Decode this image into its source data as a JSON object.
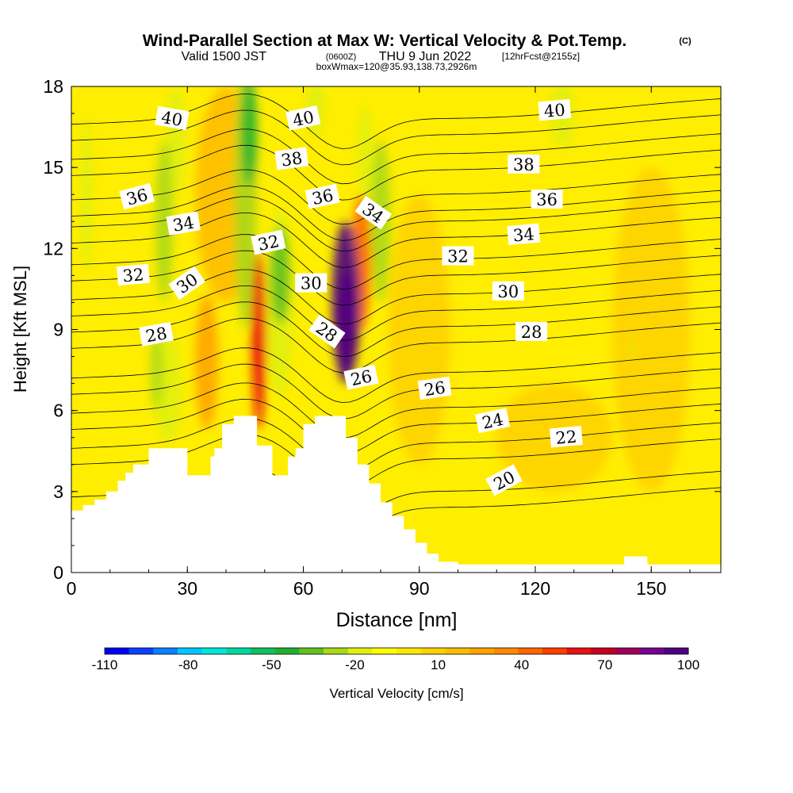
{
  "chart_data": {
    "type": "heatmap",
    "title": {
      "main": "Wind-Parallel Section at Max W: Vertical Velocity & Pot.Temp.",
      "copyright": "(C)",
      "valid_prefix": "Valid 1500 JST",
      "valid_utc": "(0600Z)",
      "valid_date": "THU 9 Jun 2022",
      "forecast": "[12hrFcst@2155z]",
      "box_info": "boxWmax=120@35.93,138.73,2926m"
    },
    "xlabel": "Distance [nm]",
    "ylabel": "Height [Kft MSL]",
    "xlim": [
      0,
      168
    ],
    "ylim": [
      0,
      18
    ],
    "xticks": [
      0,
      30,
      60,
      90,
      120,
      150
    ],
    "yticks": [
      0,
      3,
      6,
      9,
      12,
      15,
      18
    ],
    "colorbar": {
      "label": "Vertical Velocity [cm/s]",
      "tick_labels": [
        "-110",
        "-80",
        "-50",
        "-20",
        "10",
        "40",
        "70",
        "100"
      ],
      "colors": [
        "#0000ff",
        "#0a40ff",
        "#0a80ff",
        "#00c8ff",
        "#00e8d8",
        "#00d8a0",
        "#10c060",
        "#20b030",
        "#60c020",
        "#a8d818",
        "#e0ef10",
        "#ffff00",
        "#ffe800",
        "#ffd200",
        "#ffbc00",
        "#ffa400",
        "#ff8800",
        "#ff6600",
        "#ff3d00",
        "#e81010",
        "#c8001e",
        "#a0005a",
        "#780090",
        "#4b0082"
      ]
    },
    "terrain_kft": [
      [
        0,
        2.3
      ],
      [
        3,
        2.3
      ],
      [
        3,
        2.5
      ],
      [
        6,
        2.5
      ],
      [
        6,
        2.7
      ],
      [
        9,
        2.7
      ],
      [
        9,
        3.0
      ],
      [
        12,
        3.0
      ],
      [
        12,
        3.4
      ],
      [
        14,
        3.4
      ],
      [
        14,
        3.7
      ],
      [
        16,
        3.7
      ],
      [
        16,
        4.0
      ],
      [
        20,
        4.0
      ],
      [
        20,
        4.6
      ],
      [
        30,
        4.6
      ],
      [
        30,
        3.6
      ],
      [
        36,
        3.6
      ],
      [
        36,
        4.3
      ],
      [
        37,
        4.3
      ],
      [
        37,
        4.6
      ],
      [
        39,
        4.6
      ],
      [
        39,
        5.5
      ],
      [
        42,
        5.5
      ],
      [
        42,
        5.8
      ],
      [
        48,
        5.8
      ],
      [
        48,
        4.7
      ],
      [
        52,
        4.7
      ],
      [
        52,
        3.6
      ],
      [
        56,
        3.6
      ],
      [
        56,
        4.3
      ],
      [
        58,
        4.3
      ],
      [
        58,
        4.6
      ],
      [
        60,
        4.6
      ],
      [
        60,
        5.5
      ],
      [
        63,
        5.5
      ],
      [
        63,
        5.8
      ],
      [
        67,
        5.8
      ],
      [
        67,
        5.8
      ],
      [
        71,
        5.8
      ],
      [
        71,
        5.0
      ],
      [
        74,
        5.0
      ],
      [
        74,
        4.0
      ],
      [
        77,
        4.0
      ],
      [
        77,
        3.3
      ],
      [
        80,
        3.3
      ],
      [
        80,
        2.6
      ],
      [
        83,
        2.6
      ],
      [
        83,
        2.1
      ],
      [
        86,
        2.1
      ],
      [
        86,
        1.6
      ],
      [
        89,
        1.6
      ],
      [
        89,
        1.1
      ],
      [
        92,
        1.1
      ],
      [
        92,
        0.7
      ],
      [
        95,
        0.7
      ],
      [
        95,
        0.4
      ],
      [
        100,
        0.4
      ],
      [
        100,
        0.3
      ],
      [
        143,
        0.3
      ],
      [
        143,
        0.6
      ],
      [
        149,
        0.6
      ],
      [
        149,
        0.3
      ],
      [
        168,
        0.3
      ]
    ],
    "theta_levels": [
      {
        "value": 20,
        "y_at_x0": 2.2,
        "label": "20",
        "label_x": 112,
        "label_y": 3.4,
        "label_angle": -28
      },
      {
        "value": 22,
        "y_at_x0": 4.0,
        "label": "22",
        "label_x": 128,
        "label_y": 5.0,
        "label_angle": -5
      },
      {
        "value": 24,
        "y_at_x0": 5.3,
        "label": "24",
        "label_x": 109,
        "label_y": 5.6,
        "label_angle": -12
      },
      {
        "value": 26,
        "y_at_x0": 6.6,
        "label": "26",
        "label_x": 94,
        "label_y": 6.8,
        "label_angle": -8
      },
      {
        "value": 28,
        "y_at_x0": 8.3,
        "label": "28",
        "label_x": 22,
        "label_y": 8.8,
        "label_angle": -10
      },
      {
        "value": 30,
        "y_at_x0": 9.5,
        "label": "30",
        "label_x": 30,
        "label_y": 10.7,
        "label_angle": -35
      },
      {
        "value": 32,
        "y_at_x0": 10.8,
        "label": "32",
        "label_x": 16,
        "label_y": 11.0,
        "label_angle": -5
      },
      {
        "value": 34,
        "y_at_x0": 12.2,
        "label": "34",
        "label_x": 29,
        "label_y": 12.9,
        "label_angle": -10
      },
      {
        "value": 36,
        "y_at_x0": 13.2,
        "label": "36",
        "label_x": 17,
        "label_y": 13.9,
        "label_angle": -15
      },
      {
        "value": 38,
        "y_at_x0": 14.7,
        "label": "38",
        "label_x": 57,
        "label_y": 15.3,
        "label_angle": -8
      },
      {
        "value": 40,
        "y_at_x0": 16.0,
        "label": "40",
        "label_x": 26,
        "label_y": 16.8,
        "label_angle": 10
      }
    ],
    "extra_theta_labels": [
      {
        "label": "40",
        "x": 60,
        "y": 16.8,
        "angle": -12
      },
      {
        "label": "40",
        "x": 125,
        "y": 17.1,
        "angle": -5
      },
      {
        "label": "38",
        "x": 117,
        "y": 15.1,
        "angle": 0
      },
      {
        "label": "36",
        "x": 65,
        "y": 13.9,
        "angle": -12
      },
      {
        "label": "36",
        "x": 123,
        "y": 13.8,
        "angle": 0
      },
      {
        "label": "34",
        "x": 78,
        "y": 13.3,
        "angle": 35
      },
      {
        "label": "34",
        "x": 117,
        "y": 12.5,
        "angle": -5
      },
      {
        "label": "32",
        "x": 51,
        "y": 12.2,
        "angle": -12
      },
      {
        "label": "32",
        "x": 100,
        "y": 11.7,
        "angle": 0
      },
      {
        "label": "30",
        "x": 62,
        "y": 10.7,
        "angle": 0
      },
      {
        "label": "30",
        "x": 113,
        "y": 10.4,
        "angle": 0
      },
      {
        "label": "28",
        "x": 66,
        "y": 8.9,
        "angle": 35
      },
      {
        "label": "28",
        "x": 119,
        "y": 8.9,
        "angle": 0
      },
      {
        "label": "26",
        "x": 75,
        "y": 7.2,
        "angle": -12
      }
    ],
    "w_features": [
      {
        "x": 71,
        "y": 10.0,
        "rx": 3.6,
        "ry": 3.0,
        "w": 100
      },
      {
        "x": 71.5,
        "y": 9.3,
        "rx": 3.0,
        "ry": 1.8,
        "w": 80
      },
      {
        "x": 48.5,
        "y": 8.6,
        "rx": 1.8,
        "ry": 3.3,
        "w": 60
      },
      {
        "x": 48,
        "y": 9.5,
        "rx": 1.3,
        "ry": 2.0,
        "w": 45
      },
      {
        "x": 75,
        "y": 11.5,
        "rx": 2.5,
        "ry": 2.5,
        "w": 40
      },
      {
        "x": 35,
        "y": 7.8,
        "rx": 3.0,
        "ry": 2.5,
        "w": 25
      },
      {
        "x": 40,
        "y": 14.0,
        "rx": 8.0,
        "ry": 4.0,
        "w": 18
      },
      {
        "x": 150,
        "y": 9.0,
        "rx": 10.0,
        "ry": 6.0,
        "w": 12
      },
      {
        "x": 125,
        "y": 5.0,
        "rx": 15.0,
        "ry": 2.0,
        "w": 12
      },
      {
        "x": 90,
        "y": 9.0,
        "rx": 8.0,
        "ry": 5.0,
        "w": 10
      },
      {
        "x": 24,
        "y": 13.0,
        "rx": 2.2,
        "ry": 3.0,
        "w": -25
      },
      {
        "x": 27,
        "y": 16.0,
        "rx": 2.5,
        "ry": 2.0,
        "w": -20
      },
      {
        "x": 46,
        "y": 16.3,
        "rx": 2.0,
        "ry": 2.0,
        "w": -45
      },
      {
        "x": 45,
        "y": 14.0,
        "rx": 2.8,
        "ry": 5.0,
        "w": -25
      },
      {
        "x": 54,
        "y": 11.0,
        "rx": 2.5,
        "ry": 1.8,
        "w": -35
      },
      {
        "x": 54,
        "y": 10.0,
        "rx": 3.5,
        "ry": 3.5,
        "w": -22
      },
      {
        "x": 80,
        "y": 13.0,
        "rx": 2.5,
        "ry": 3.0,
        "w": -30
      },
      {
        "x": 76,
        "y": 15.5,
        "rx": 2.0,
        "ry": 1.8,
        "w": -20
      },
      {
        "x": 63,
        "y": 17.3,
        "rx": 2.5,
        "ry": 1.2,
        "w": -20
      },
      {
        "x": 127,
        "y": 17.0,
        "rx": 3.0,
        "ry": 1.3,
        "w": -20
      },
      {
        "x": 4,
        "y": 14.0,
        "rx": 1.5,
        "ry": 3.0,
        "w": -15
      },
      {
        "x": 22,
        "y": 7.5,
        "rx": 1.5,
        "ry": 1.5,
        "w": -30
      },
      {
        "x": 25,
        "y": 6.8,
        "rx": 3.5,
        "ry": 2.0,
        "w": -20
      },
      {
        "x": 145,
        "y": 8.3,
        "rx": 0.5,
        "ry": 0.5,
        "w": -20
      }
    ]
  }
}
